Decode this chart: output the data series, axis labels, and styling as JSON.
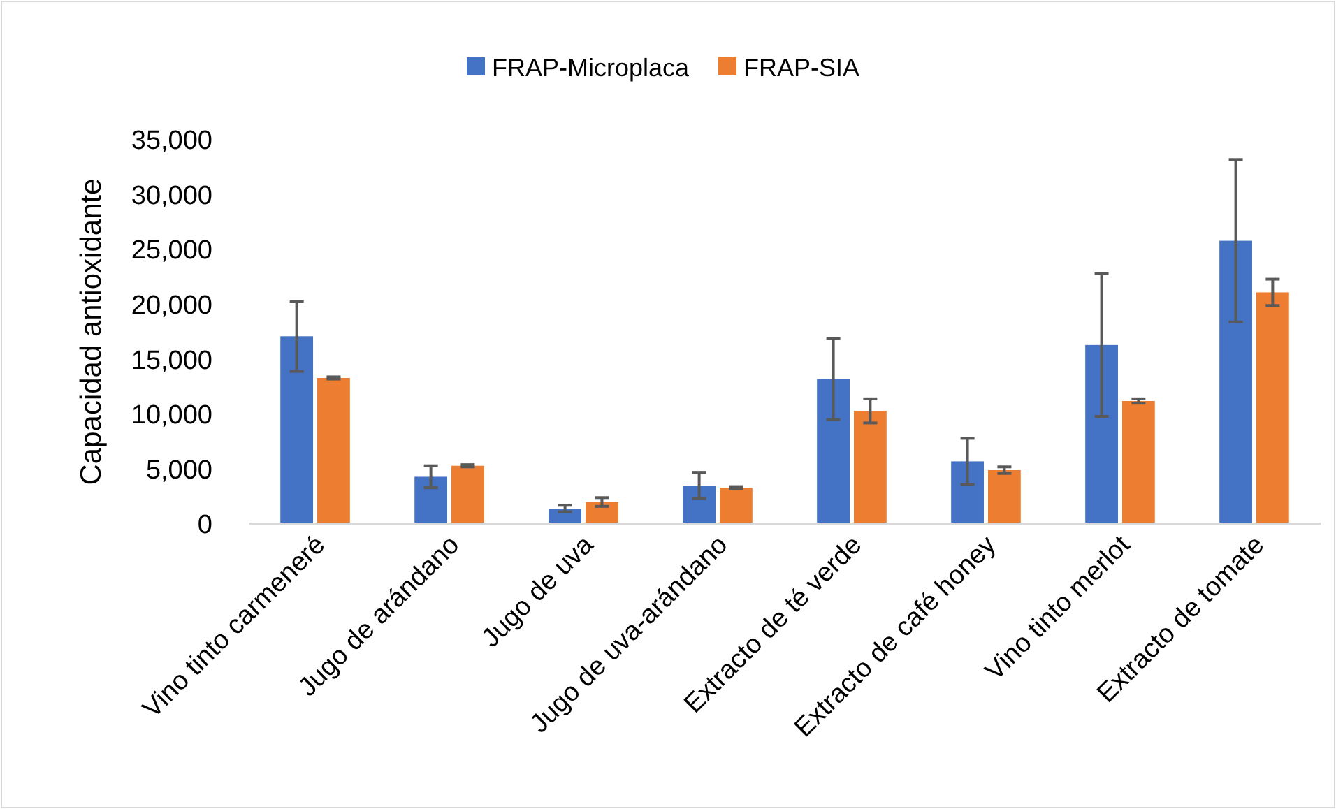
{
  "chart_data": {
    "type": "bar",
    "ylabel": "Capacidad antioxidante",
    "categories": [
      "Vino tinto carmeneré",
      "Jugo de arándano",
      "Jugo de uva",
      "Jugo de uva-arándano",
      "Extracto de té verde",
      "Extracto de café honey",
      "Vino tinto merlot",
      "Extracto de tomate"
    ],
    "series": [
      {
        "name": "FRAP-Microplaca",
        "color": "#4472c4",
        "values": [
          17100,
          4300,
          1400,
          3500,
          13200,
          5700,
          16300,
          25800
        ],
        "errors": [
          3200,
          1000,
          300,
          1200,
          3700,
          2100,
          6500,
          7400
        ]
      },
      {
        "name": "FRAP-SIA",
        "color": "#ed7d31",
        "values": [
          13300,
          5300,
          2000,
          3300,
          10300,
          4900,
          11200,
          21100
        ],
        "errors": [
          100,
          100,
          400,
          100,
          1100,
          300,
          200,
          1200
        ]
      }
    ],
    "ylim": [
      0,
      35000
    ],
    "yticks": [
      {
        "value": 0,
        "label": "0"
      },
      {
        "value": 5000,
        "label": "5,000"
      },
      {
        "value": 10000,
        "label": "10,000"
      },
      {
        "value": 15000,
        "label": "15,000"
      },
      {
        "value": 20000,
        "label": "20,000"
      },
      {
        "value": 25000,
        "label": "25,000"
      },
      {
        "value": 30000,
        "label": "30,000"
      },
      {
        "value": 35000,
        "label": "35,000"
      }
    ],
    "grid": false,
    "legend": "top"
  }
}
